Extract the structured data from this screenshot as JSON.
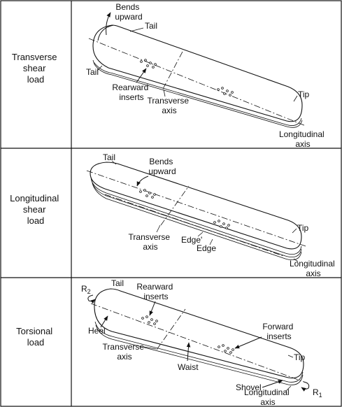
{
  "panels": [
    {
      "row_label": [
        "Transverse",
        "shear",
        "load"
      ],
      "labels": {
        "bends": [
          "Bends",
          "upward"
        ],
        "tail_top": "Tail",
        "tail_left": "Tail",
        "rearward_inserts": [
          "Rearward",
          "inserts"
        ],
        "transverse_axis": [
          "Transverse",
          "axis"
        ],
        "tip": "Tip",
        "longitudinal_axis": [
          "Longitudinal",
          "axis"
        ]
      }
    },
    {
      "row_label": [
        "Longitudinal",
        "shear",
        "load"
      ],
      "labels": {
        "tail": "Tail",
        "bends": [
          "Bends",
          "upward"
        ],
        "transverse_axis": [
          "Transverse",
          "axis"
        ],
        "edge_prime": "Edge'",
        "edge": "Edge",
        "tip": "Tip",
        "longitudinal_axis": [
          "Longitudinal",
          "axis"
        ]
      }
    },
    {
      "row_label": [
        "Torsional",
        "load"
      ],
      "labels": {
        "r2": "R",
        "r2_sub": "2",
        "tail": "Tail",
        "rearward_inserts": [
          "Rearward",
          "inserts"
        ],
        "heel": "Heel",
        "forward_inserts": [
          "Forward",
          "inserts"
        ],
        "transverse_axis": [
          "Transverse",
          "axis"
        ],
        "waist": "Waist",
        "tip": "Tip",
        "shovel": "Shovel",
        "longitudinal_axis": [
          "Longitudinal",
          "axis"
        ],
        "r1": "R",
        "r1_sub": "1"
      }
    }
  ]
}
